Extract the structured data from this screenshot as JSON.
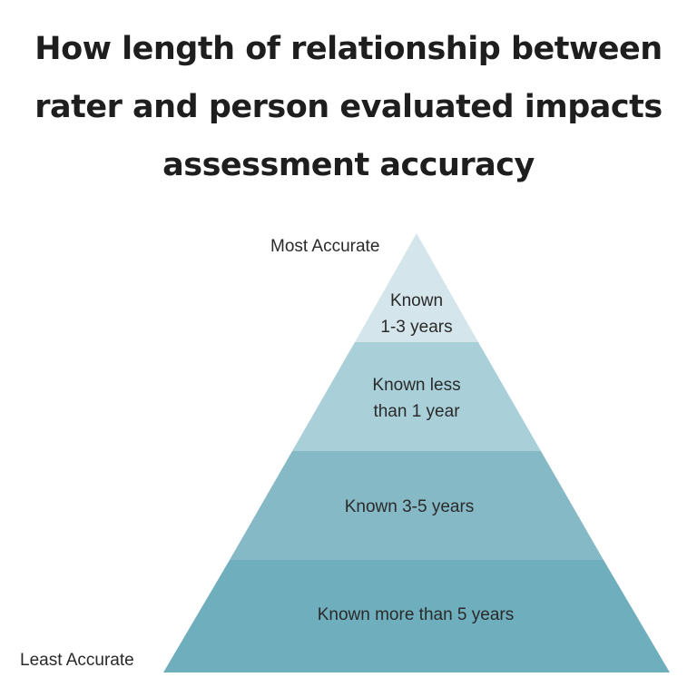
{
  "title": {
    "lines": [
      "How length of relationship between",
      "rater and person evaluated impacts",
      "assessment accuracy"
    ]
  },
  "scale": {
    "top_label": "Most Accurate",
    "bottom_label": "Least Accurate"
  },
  "tiers": [
    {
      "lines": [
        "Known",
        "1-3 years"
      ],
      "color": "#d4e6ec"
    },
    {
      "lines": [
        "Known less",
        "than 1 year"
      ],
      "color": "#a9cfd9"
    },
    {
      "lines": [
        "Known 3-5 years"
      ],
      "color": "#86b9c6"
    },
    {
      "lines": [
        "Known more than 5 years"
      ],
      "color": "#6faebd"
    }
  ]
}
